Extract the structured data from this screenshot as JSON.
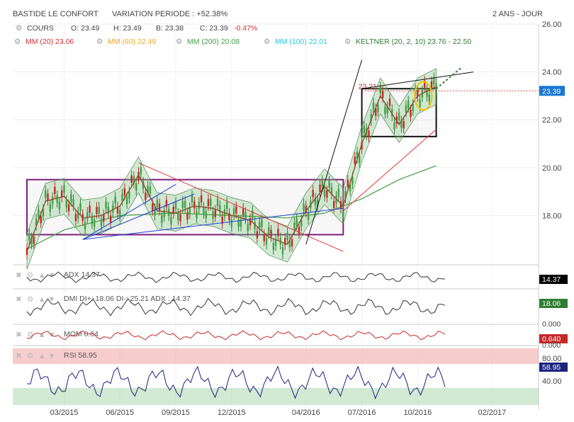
{
  "header": {
    "name": "BASTIDE LE CONFORT",
    "variation_label": "VARIATION PERIODE : +52.38%",
    "period": "2 ANS - JOUR",
    "cours_label": "COURS",
    "open": "O: 23.49",
    "high": "H: 23.49",
    "low": "B: 23.38",
    "close_label": "C: 23.39",
    "change": "-0.47%"
  },
  "indicators": [
    {
      "label": "MM (20) 23.06",
      "color": "#d32f2f"
    },
    {
      "label": "MM (60) 22.49",
      "color": "#f5a623"
    },
    {
      "label": "MM (200) 20.08",
      "color": "#43a047"
    },
    {
      "label": "MM (100) 22.01",
      "color": "#26c6da"
    },
    {
      "label": "KELTNER (20, 2, 10) 23.76 - 22.50",
      "color": "#2e7d32"
    }
  ],
  "panels": {
    "adx": {
      "label": "ADX 14.37",
      "value": "14.37"
    },
    "dmi": {
      "label": "DMI DI+: 18.06 DI-: 25.21 ADX : 14.37",
      "value_top": "25.21",
      "value": "18.06",
      "zero": "0.000"
    },
    "mom": {
      "label": "MOM 0.64",
      "value": "0.640",
      "zero": "0.000"
    },
    "rsi": {
      "label": "RSI 58.95",
      "value": "58.95",
      "ticks": [
        "80.00",
        "40.00",
        "0.000"
      ]
    }
  },
  "annotations": {
    "peak_label": "23.21",
    "last_price": "23.39"
  },
  "chart_data": {
    "type": "line",
    "title": "BASTIDE LE CONFORT",
    "x_ticks": [
      "03/2015",
      "06/2015",
      "09/2015",
      "12/2015",
      "04/2016",
      "07/2016",
      "10/2016",
      "02/2017"
    ],
    "y_ticks": [
      "18.00",
      "20.00",
      "22.00",
      "24.00",
      "26.00"
    ],
    "ylim": [
      16.0,
      26.0
    ],
    "series": [
      {
        "name": "COURS",
        "x": [
          "2015-01",
          "2015-02",
          "2015-03",
          "2015-04",
          "2015-05",
          "2015-06",
          "2015-07",
          "2015-08",
          "2015-09",
          "2015-10",
          "2015-11",
          "2015-12",
          "2016-01",
          "2016-02",
          "2016-03",
          "2016-04",
          "2016-05",
          "2016-06",
          "2016-07",
          "2016-08",
          "2016-09",
          "2016-10",
          "2016-11"
        ],
        "values": [
          16.5,
          18.6,
          18.8,
          17.9,
          18.0,
          18.4,
          19.7,
          18.2,
          18.1,
          18.4,
          18.3,
          18.0,
          17.8,
          17.1,
          16.8,
          18.2,
          19.2,
          18.4,
          21.0,
          23.0,
          21.8,
          23.0,
          23.39
        ]
      },
      {
        "name": "MM (200)",
        "x": [
          "2015-01",
          "2015-03",
          "2015-06",
          "2015-09",
          "2015-12",
          "2016-03",
          "2016-05",
          "2016-07",
          "2016-09",
          "2016-11"
        ],
        "values": [
          16.6,
          17.4,
          18.0,
          18.1,
          18.0,
          17.9,
          18.1,
          18.7,
          19.5,
          20.08
        ]
      }
    ],
    "boxes": [
      {
        "x0": "2015-01",
        "x1": "2016-06",
        "y0": 17.2,
        "y1": 19.5,
        "color": "#7b1f7b"
      },
      {
        "x0": "2016-07",
        "x1": "2016-11",
        "y0": 21.3,
        "y1": 23.3,
        "color": "#111111"
      }
    ],
    "resistance": 23.21
  }
}
